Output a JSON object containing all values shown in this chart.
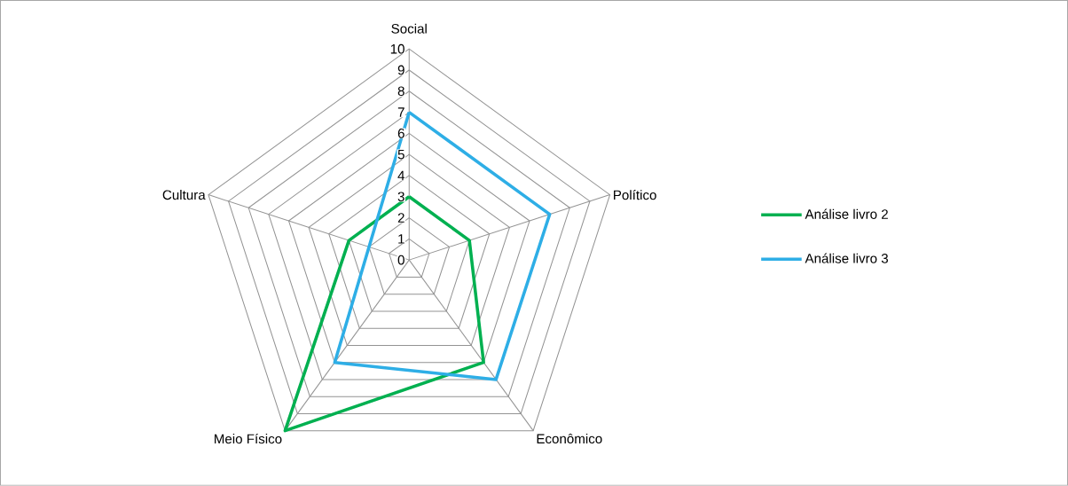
{
  "chart_data": {
    "type": "radar",
    "categories": [
      "Social",
      "Político",
      "Econômico",
      "Meio Físico",
      "Cultura"
    ],
    "series": [
      {
        "name": "Análise livro 2",
        "color": "#00b050",
        "values": [
          3,
          3,
          6,
          10,
          3
        ]
      },
      {
        "name": "Análise livro 3",
        "color": "#2eaee6",
        "values": [
          7,
          7,
          7,
          6,
          2
        ]
      }
    ],
    "ylim": [
      0,
      10
    ],
    "yticks": [
      0,
      1,
      2,
      3,
      4,
      5,
      6,
      7,
      8,
      9,
      10
    ],
    "grid": true,
    "legend": "right",
    "marker": "none",
    "line_style": "solid"
  }
}
